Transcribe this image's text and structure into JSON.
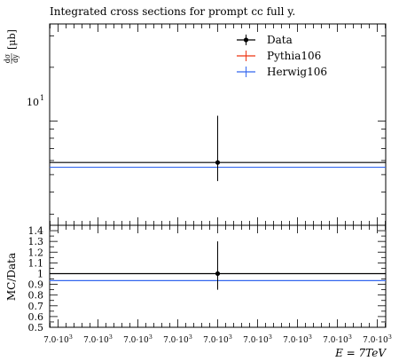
{
  "chart_data": [
    {
      "type": "line",
      "title": "Integrated cross sections for prompt cc full y.",
      "ylabel": "dσ/dy [μb]",
      "ylabel_parts": {
        "fraction_numerator": "dσ",
        "fraction_denominator": "dy",
        "unit": "[μb]"
      },
      "yscale": "log",
      "ylim": [
        2.6,
        35
      ],
      "ytick_labels": [
        "10"
      ],
      "ytick_exponents": [
        "1"
      ],
      "ytick_values": [
        10
      ],
      "xlim": [
        6999.6,
        7000.4
      ],
      "legend": {
        "placement": "top-right",
        "entries": [
          "Data",
          "Pythia106",
          "Herwig106"
        ]
      },
      "series": [
        {
          "name": "Data",
          "x": [
            7000
          ],
          "y": [
            5.85
          ],
          "yerr_low": [
            1.25
          ],
          "yerr_high": [
            4.85
          ]
        },
        {
          "name": "Pythia106",
          "y_const": 5.5
        },
        {
          "name": "Herwig106",
          "y_const": 5.5
        }
      ]
    },
    {
      "type": "line",
      "ylabel": "MC/Data",
      "ylim": [
        0.5,
        1.45
      ],
      "yticks": [
        "0.5",
        "0.6",
        "0.7",
        "0.8",
        "0.9",
        "1",
        "1.1",
        "1.2",
        "1.3",
        "1.4"
      ],
      "ytick_values": [
        0.5,
        0.6,
        0.7,
        0.8,
        0.9,
        1.0,
        1.1,
        1.2,
        1.3,
        1.4
      ],
      "xlabel": "E = 7TeV",
      "xtick_mantissa": "7.0·10",
      "xtick_exponent": "3",
      "xtick_values": [
        6999.6,
        6999.7,
        6999.8,
        6999.9,
        7000.0,
        7000.1,
        7000.2,
        7000.3,
        7000.4
      ],
      "series": [
        {
          "name": "Data",
          "x": [
            7000
          ],
          "y": [
            1.0
          ],
          "yerr_low": [
            0.15
          ],
          "yerr_high": [
            0.3
          ]
        },
        {
          "name": "Pythia106",
          "y_const": 0.935
        },
        {
          "name": "Herwig106",
          "y_const": 0.935
        }
      ]
    }
  ],
  "colors": {
    "data": "#000000",
    "pythia": "#ee3311",
    "herwig": "#3366ee",
    "ref_band": "#ffff00"
  }
}
